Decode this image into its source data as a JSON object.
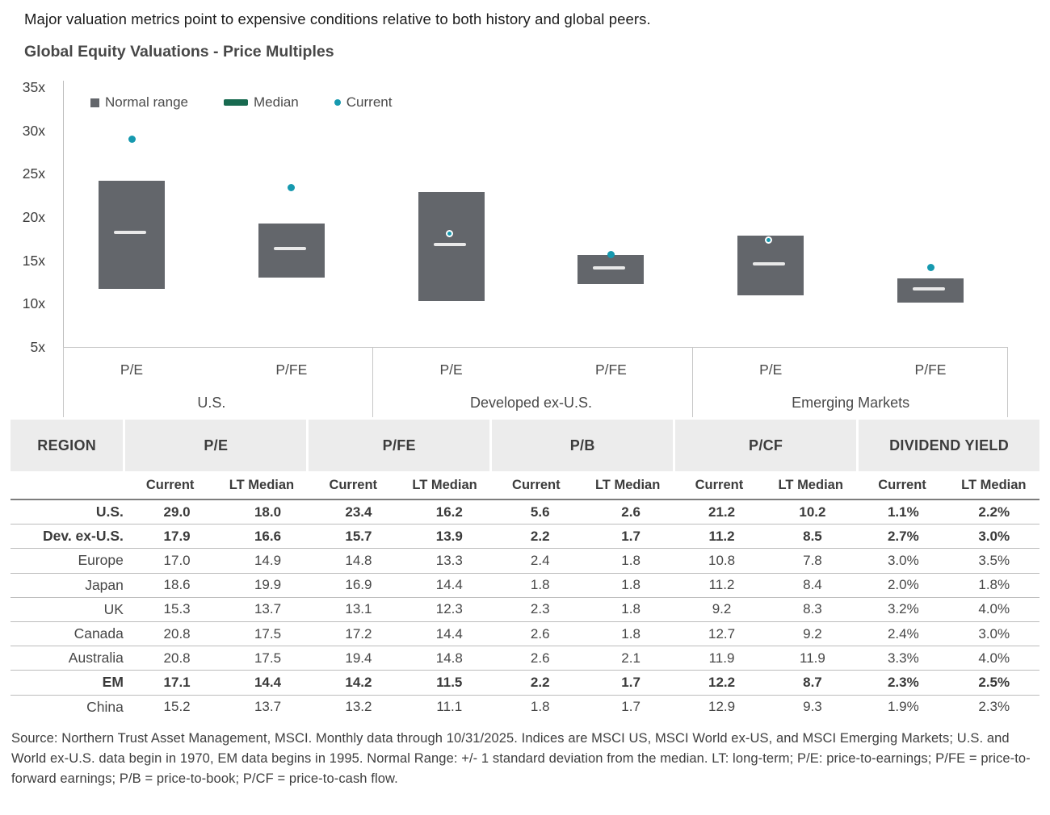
{
  "headline": "Major valuation metrics point to expensive conditions relative to both history and global peers.",
  "chart_title": "Global Equity Valuations - Price Multiples",
  "colors": {
    "normal_range": "#63666b",
    "median": "#186a50",
    "current": "#1699af",
    "table_header_bg": "#ececec"
  },
  "chart_data": {
    "type": "range-bar",
    "title": "Global Equity Valuations - Price Multiples",
    "y_axis": {
      "ticks": [
        "35x",
        "30x",
        "25x",
        "20x",
        "15x",
        "10x",
        "5x"
      ],
      "min": 5,
      "max": 35,
      "unit": "x"
    },
    "legend": [
      {
        "label": "Normal range",
        "swatch": "square",
        "color": "#63666b"
      },
      {
        "label": "Median",
        "swatch": "bar",
        "color": "#186a50"
      },
      {
        "label": "Current",
        "swatch": "dot",
        "color": "#1699af"
      }
    ],
    "groups": [
      {
        "label": "U.S.",
        "bars": [
          {
            "metric": "P/E",
            "range_low": 11.7,
            "range_high": 24.2,
            "median": 18.0,
            "current": 29.0
          },
          {
            "metric": "P/FE",
            "range_low": 13.0,
            "range_high": 19.3,
            "median": 16.2,
            "current": 23.4
          }
        ]
      },
      {
        "label": "Developed ex-U.S.",
        "bars": [
          {
            "metric": "P/E",
            "range_low": 10.3,
            "range_high": 22.9,
            "median": 16.6,
            "current": 17.9
          },
          {
            "metric": "P/FE",
            "range_low": 12.3,
            "range_high": 15.6,
            "median": 13.9,
            "current": 15.7
          }
        ]
      },
      {
        "label": "Emerging Markets",
        "bars": [
          {
            "metric": "P/E",
            "range_low": 11.0,
            "range_high": 17.9,
            "median": 14.4,
            "current": 17.1
          },
          {
            "metric": "P/FE",
            "range_low": 10.1,
            "range_high": 12.9,
            "median": 11.5,
            "current": 14.2
          }
        ]
      }
    ]
  },
  "table": {
    "column_groups": [
      {
        "label": "REGION",
        "span": 1
      },
      {
        "label": "P/E",
        "span": 2
      },
      {
        "label": "P/FE",
        "span": 2
      },
      {
        "label": "P/B",
        "span": 2
      },
      {
        "label": "P/CF",
        "span": 2
      },
      {
        "label": "DIVIDEND YIELD",
        "span": 2
      }
    ],
    "sub_headers": [
      "Current",
      "LT Median",
      "Current",
      "LT Median",
      "Current",
      "LT Median",
      "Current",
      "LT Median",
      "Current",
      "LT Median"
    ],
    "rows": [
      {
        "region": "U.S.",
        "bold": true,
        "values": [
          "29.0",
          "18.0",
          "23.4",
          "16.2",
          "5.6",
          "2.6",
          "21.2",
          "10.2",
          "1.1%",
          "2.2%"
        ]
      },
      {
        "region": "Dev. ex-U.S.",
        "bold": true,
        "values": [
          "17.9",
          "16.6",
          "15.7",
          "13.9",
          "2.2",
          "1.7",
          "11.2",
          "8.5",
          "2.7%",
          "3.0%"
        ]
      },
      {
        "region": "Europe",
        "bold": false,
        "values": [
          "17.0",
          "14.9",
          "14.8",
          "13.3",
          "2.4",
          "1.8",
          "10.8",
          "7.8",
          "3.0%",
          "3.5%"
        ]
      },
      {
        "region": "Japan",
        "bold": false,
        "values": [
          "18.6",
          "19.9",
          "16.9",
          "14.4",
          "1.8",
          "1.8",
          "11.2",
          "8.4",
          "2.0%",
          "1.8%"
        ]
      },
      {
        "region": "UK",
        "bold": false,
        "values": [
          "15.3",
          "13.7",
          "13.1",
          "12.3",
          "2.3",
          "1.8",
          "9.2",
          "8.3",
          "3.2%",
          "4.0%"
        ]
      },
      {
        "region": "Canada",
        "bold": false,
        "values": [
          "20.8",
          "17.5",
          "17.2",
          "14.4",
          "2.6",
          "1.8",
          "12.7",
          "9.2",
          "2.4%",
          "3.0%"
        ]
      },
      {
        "region": "Australia",
        "bold": false,
        "values": [
          "20.8",
          "17.5",
          "19.4",
          "14.8",
          "2.6",
          "2.1",
          "11.9",
          "11.9",
          "3.3%",
          "4.0%"
        ]
      },
      {
        "region": "EM",
        "bold": true,
        "values": [
          "17.1",
          "14.4",
          "14.2",
          "11.5",
          "2.2",
          "1.7",
          "12.2",
          "8.7",
          "2.3%",
          "2.5%"
        ]
      },
      {
        "region": "China",
        "bold": false,
        "values": [
          "15.2",
          "13.7",
          "13.2",
          "11.1",
          "1.8",
          "1.7",
          "12.9",
          "9.3",
          "1.9%",
          "2.3%"
        ]
      }
    ]
  },
  "source_note": "Source: Northern Trust Asset Management, MSCI. Monthly data through 10/31/2025. Indices are MSCI US, MSCI World ex-US, and MSCI Emerging Markets; U.S. and World ex-U.S. data begin in 1970, EM data begins in 1995. Normal Range: +/- 1 standard deviation from the median.  LT: long-term; P/E: price-to-earnings; P/FE = price-to-forward earnings; P/B = price-to-book; P/CF = price-to-cash flow."
}
